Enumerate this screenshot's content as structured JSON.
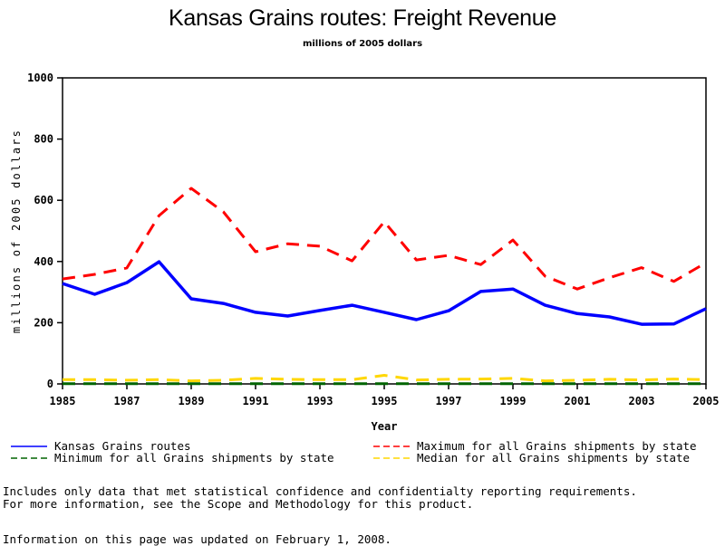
{
  "chart_data": {
    "type": "line",
    "title": "Kansas Grains routes: Freight Revenue",
    "subtitle": "millions of 2005 dollars",
    "xlabel": "Year",
    "ylabel": "millions of 2005 dollars",
    "xlim": [
      1985,
      2005
    ],
    "ylim": [
      0,
      1000
    ],
    "x_ticks": [
      1985,
      1987,
      1989,
      1991,
      1993,
      1995,
      1997,
      1999,
      2001,
      2003,
      2005
    ],
    "y_ticks": [
      0,
      200,
      400,
      600,
      800,
      1000
    ],
    "grid": false,
    "legend_position": "bottom",
    "x": [
      1985,
      1986,
      1987,
      1988,
      1989,
      1990,
      1991,
      1992,
      1993,
      1994,
      1995,
      1996,
      1997,
      1998,
      1999,
      2000,
      2001,
      2002,
      2003,
      2004,
      2005
    ],
    "series": [
      {
        "name": "Kansas Grains routes",
        "color": "#0000ff",
        "style": "solid",
        "values": [
          328,
          293,
          331,
          399,
          278,
          263,
          234,
          222,
          240,
          257,
          234,
          210,
          239,
          302,
          310,
          257,
          230,
          219,
          195,
          196,
          246
        ]
      },
      {
        "name": "Maximum for all Grains shipments by state",
        "color": "#ff0000",
        "style": "dashed",
        "values": [
          343,
          358,
          379,
          550,
          639,
          562,
          432,
          458,
          450,
          402,
          530,
          405,
          420,
          390,
          470,
          352,
          310,
          347,
          380,
          335,
          396
        ]
      },
      {
        "name": "Minimum for all Grains shipments by state",
        "color": "#006400",
        "style": "dashed",
        "values": [
          1,
          1,
          1,
          1,
          1,
          1,
          1,
          1,
          1,
          1,
          1,
          1,
          1,
          1,
          1,
          1,
          1,
          1,
          1,
          1,
          1
        ]
      },
      {
        "name": "Median for all Grains shipments by state",
        "color": "#ffd700",
        "style": "dashed",
        "values": [
          14,
          14,
          12,
          14,
          10,
          12,
          18,
          15,
          14,
          14,
          28,
          13,
          15,
          16,
          18,
          10,
          12,
          15,
          13,
          16,
          14
        ]
      }
    ]
  },
  "footnotes": {
    "line1": "Includes only data that met statistical confidence and confidentialty reporting requirements.",
    "line2": "For more information, see the Scope and Methodology for this product.",
    "updated": "Information on this page was updated on February 1, 2008."
  }
}
